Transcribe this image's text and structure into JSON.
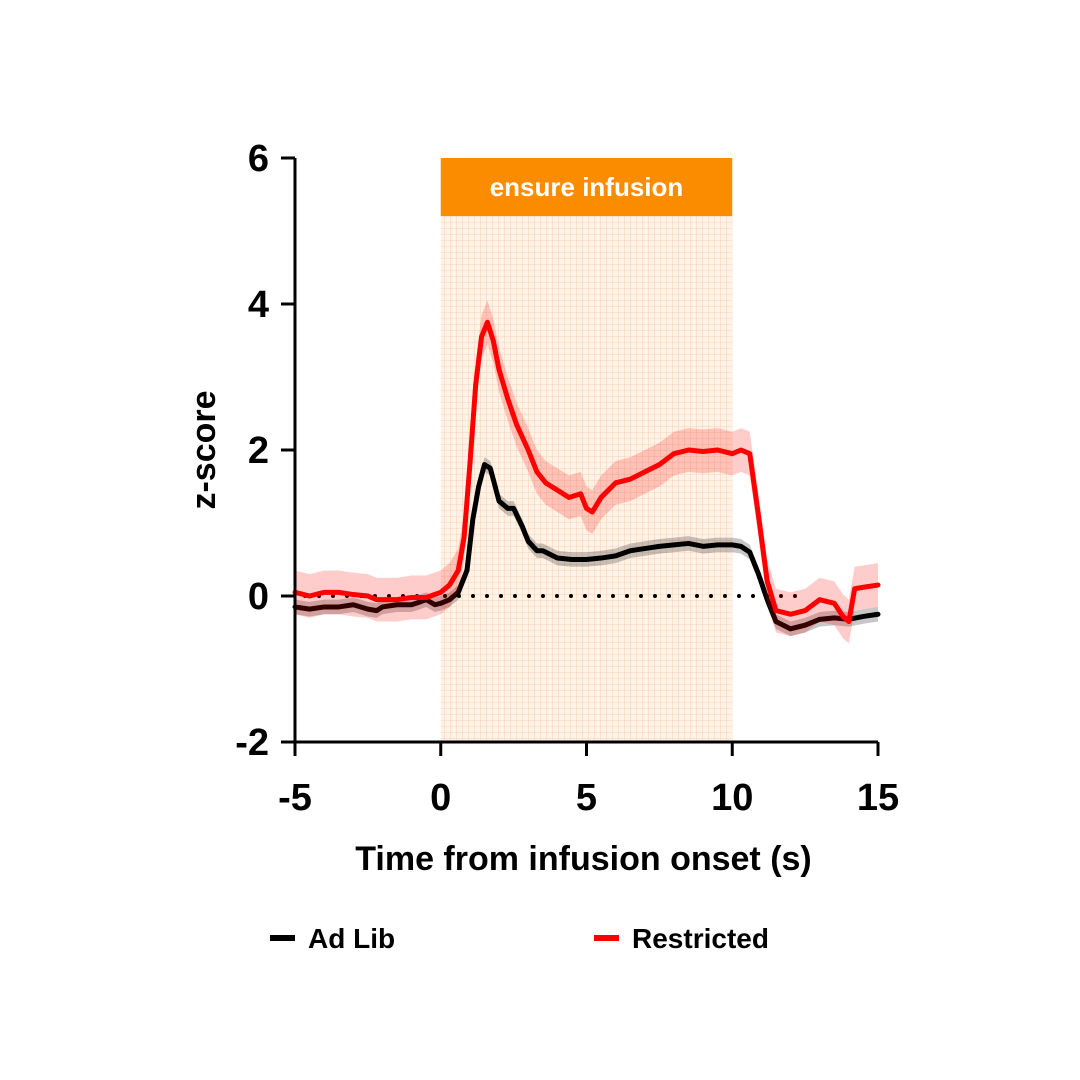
{
  "chart_data": {
    "type": "line",
    "title": "",
    "xlabel": "Time from infusion onset (s)",
    "ylabel": "z-score",
    "xlim": [
      -5,
      15
    ],
    "ylim": [
      -2,
      6
    ],
    "xticks": [
      -5,
      0,
      5,
      10,
      15
    ],
    "yticks": [
      -2,
      0,
      2,
      4,
      6
    ],
    "xtick_labels": [
      "-5",
      "0",
      "5",
      "10",
      "15"
    ],
    "ytick_labels": [
      "-2",
      "0",
      "2",
      "4",
      "6"
    ],
    "baseline": {
      "y": 0,
      "style": "dotted"
    },
    "shaded_region": {
      "x_start": 0,
      "x_end": 10,
      "label": "ensure infusion",
      "color": "#fb8c00"
    },
    "series": [
      {
        "name": "Ad Lib",
        "color": "#000000",
        "x": [
          -5,
          -4.5,
          -4,
          -3.5,
          -3,
          -2.5,
          -2.2,
          -2,
          -1.5,
          -1,
          -0.7,
          -0.5,
          -0.2,
          0,
          0.3,
          0.6,
          0.9,
          1.1,
          1.3,
          1.5,
          1.7,
          2,
          2.3,
          2.5,
          2.8,
          3,
          3.3,
          3.5,
          4,
          4.5,
          5,
          5.5,
          6,
          6.5,
          7,
          7.5,
          8,
          8.5,
          9,
          9.5,
          10,
          10.3,
          10.6,
          10.9,
          11.2,
          11.5,
          12,
          12.5,
          13,
          13.5,
          14,
          14.5,
          15
        ],
        "y": [
          -0.15,
          -0.18,
          -0.15,
          -0.15,
          -0.12,
          -0.18,
          -0.2,
          -0.15,
          -0.12,
          -0.12,
          -0.08,
          -0.05,
          -0.12,
          -0.1,
          -0.05,
          0.05,
          0.35,
          1.05,
          1.5,
          1.8,
          1.75,
          1.3,
          1.2,
          1.2,
          0.95,
          0.75,
          0.62,
          0.62,
          0.52,
          0.5,
          0.5,
          0.52,
          0.55,
          0.62,
          0.65,
          0.68,
          0.7,
          0.72,
          0.68,
          0.7,
          0.7,
          0.68,
          0.6,
          0.3,
          -0.05,
          -0.35,
          -0.45,
          -0.4,
          -0.32,
          -0.3,
          -0.32,
          -0.28,
          -0.25
        ],
        "error": 0.1
      },
      {
        "name": "Restricted",
        "color": "#ff0000",
        "x": [
          -5,
          -4.5,
          -4,
          -3.5,
          -3,
          -2.5,
          -2.2,
          -2,
          -1.5,
          -1,
          -0.5,
          0,
          0.3,
          0.6,
          0.8,
          1,
          1.2,
          1.4,
          1.6,
          1.8,
          2,
          2.3,
          2.6,
          3,
          3.3,
          3.6,
          4,
          4.4,
          4.8,
          5,
          5.2,
          5.5,
          6,
          6.5,
          7,
          7.5,
          8,
          8.5,
          9,
          9.5,
          10,
          10.3,
          10.6,
          10.9,
          11.2,
          11.5,
          12,
          12.5,
          13,
          13.5,
          13.8,
          14,
          14.2,
          14.5,
          15
        ],
        "y": [
          0.05,
          0.0,
          0.05,
          0.05,
          0.02,
          0.0,
          -0.05,
          -0.05,
          -0.05,
          -0.02,
          -0.02,
          0.05,
          0.15,
          0.35,
          0.8,
          1.8,
          2.9,
          3.55,
          3.75,
          3.5,
          3.1,
          2.7,
          2.35,
          2.0,
          1.7,
          1.55,
          1.45,
          1.35,
          1.4,
          1.2,
          1.15,
          1.35,
          1.55,
          1.6,
          1.7,
          1.8,
          1.95,
          2.0,
          1.98,
          2.0,
          1.95,
          2.0,
          1.95,
          1.1,
          0.2,
          -0.2,
          -0.25,
          -0.2,
          -0.05,
          -0.1,
          -0.28,
          -0.35,
          0.1,
          0.12,
          0.15
        ],
        "error": 0.3
      }
    ],
    "legend": {
      "position": "bottom",
      "entries": [
        "Ad Lib",
        "Restricted"
      ]
    }
  }
}
